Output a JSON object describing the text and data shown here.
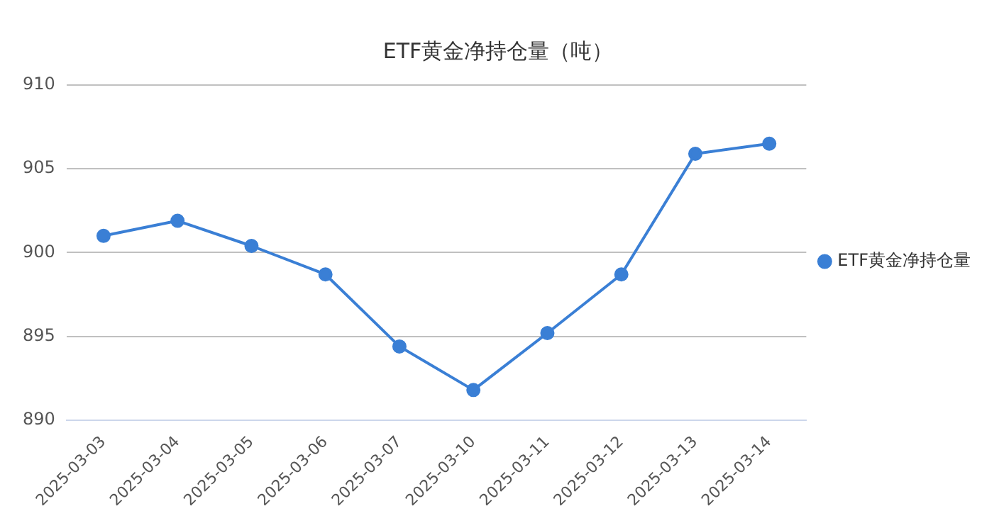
{
  "chart_data": {
    "type": "line",
    "title": "ETF黄金净持仓量（吨）",
    "categories": [
      "2025-03-03",
      "2025-03-04",
      "2025-03-05",
      "2025-03-06",
      "2025-03-07",
      "2025-03-10",
      "2025-03-11",
      "2025-03-12",
      "2025-03-13",
      "2025-03-14"
    ],
    "series": [
      {
        "name": "ETF黄金净持仓量",
        "color": "#3a7fd5",
        "values": [
          901.0,
          901.9,
          900.4,
          898.7,
          894.4,
          891.8,
          895.2,
          898.7,
          905.9,
          906.5
        ]
      }
    ],
    "ylim": [
      890,
      910
    ],
    "yticks": [
      890,
      895,
      900,
      905,
      910
    ],
    "grid": "y",
    "legend": "right",
    "marker": "circle",
    "line_style": "solid"
  }
}
